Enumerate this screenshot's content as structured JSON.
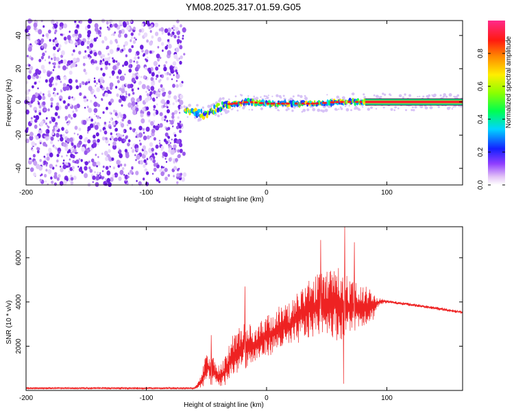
{
  "title": "YM08.2025.317.01.59.G05",
  "chart_data": [
    {
      "type": "heatmap",
      "name": "spectrogram",
      "xlabel": "Height of straight line (km)",
      "ylabel": "Frequency (Hz)",
      "xlim": [
        -200,
        163
      ],
      "ylim": [
        -50,
        49
      ],
      "xticks": [
        -200,
        -100,
        0,
        100
      ],
      "yticks": [
        -40,
        -20,
        0,
        20,
        40
      ],
      "noise_region_x": [
        -200,
        -68
      ],
      "ridge": [
        {
          "x": -68,
          "f": -6
        },
        {
          "x": -60,
          "f": -6
        },
        {
          "x": -52,
          "f": -8
        },
        {
          "x": -45,
          "f": -5
        },
        {
          "x": -35,
          "f": -2
        },
        {
          "x": -28,
          "f": -1
        },
        {
          "x": -15,
          "f": 0
        },
        {
          "x": 0,
          "f": -1
        },
        {
          "x": 20,
          "f": -1
        },
        {
          "x": 40,
          "f": -1
        },
        {
          "x": 60,
          "f": 0
        },
        {
          "x": 82,
          "f": 0
        },
        {
          "x": 163,
          "f": 0
        }
      ],
      "colorbar": {
        "label": "Normalized spectral amplitude",
        "ticks": [
          0.0,
          0.2,
          0.4,
          0.6,
          0.8
        ],
        "tick_labels": [
          "0.0",
          "0.2",
          "0.4",
          "0.6",
          "0.8"
        ],
        "range": [
          0,
          1
        ]
      }
    },
    {
      "type": "line",
      "name": "snr",
      "xlabel": "Height of straight line (km)",
      "ylabel": "SNR (10 * v/v)",
      "xlim": [
        -200,
        163
      ],
      "ylim": [
        0,
        7400
      ],
      "xticks": [
        -200,
        -100,
        0,
        100
      ],
      "yticks": [
        2000,
        4000,
        6000
      ],
      "color": "#ee2222",
      "envelope": [
        {
          "x": -200,
          "lo": 50,
          "hi": 150
        },
        {
          "x": -60,
          "lo": 50,
          "hi": 150
        },
        {
          "x": -55,
          "lo": 80,
          "hi": 600
        },
        {
          "x": -50,
          "lo": 300,
          "hi": 1900
        },
        {
          "x": -45,
          "lo": 200,
          "hi": 1600
        },
        {
          "x": -40,
          "lo": 100,
          "hi": 1200
        },
        {
          "x": -35,
          "lo": 200,
          "hi": 1400
        },
        {
          "x": -30,
          "lo": 500,
          "hi": 2400
        },
        {
          "x": -20,
          "lo": 900,
          "hi": 3000
        },
        {
          "x": -10,
          "lo": 1200,
          "hi": 3000
        },
        {
          "x": 0,
          "lo": 1500,
          "hi": 3400
        },
        {
          "x": 10,
          "lo": 1800,
          "hi": 3800
        },
        {
          "x": 20,
          "lo": 1900,
          "hi": 4000
        },
        {
          "x": 30,
          "lo": 2200,
          "hi": 4800
        },
        {
          "x": 40,
          "lo": 2400,
          "hi": 5200
        },
        {
          "x": 50,
          "lo": 2600,
          "hi": 5400
        },
        {
          "x": 60,
          "lo": 2200,
          "hi": 5600
        },
        {
          "x": 70,
          "lo": 2600,
          "hi": 5000
        },
        {
          "x": 80,
          "lo": 2900,
          "hi": 4800
        },
        {
          "x": 88,
          "lo": 3100,
          "hi": 4600
        },
        {
          "x": 93,
          "lo": 3800,
          "hi": 4200
        },
        {
          "x": 100,
          "lo": 3950,
          "hi": 4100
        },
        {
          "x": 120,
          "lo": 3800,
          "hi": 3950
        },
        {
          "x": 140,
          "lo": 3650,
          "hi": 3800
        },
        {
          "x": 163,
          "lo": 3450,
          "hi": 3600
        }
      ],
      "spikes": [
        {
          "x": 65,
          "value": 7400
        },
        {
          "x": 45,
          "value": 6800
        },
        {
          "x": 73,
          "value": 6700
        },
        {
          "x": 64,
          "value": 300
        },
        {
          "x": -18,
          "value": 4700
        },
        {
          "x": -46,
          "value": 2500
        }
      ]
    }
  ]
}
